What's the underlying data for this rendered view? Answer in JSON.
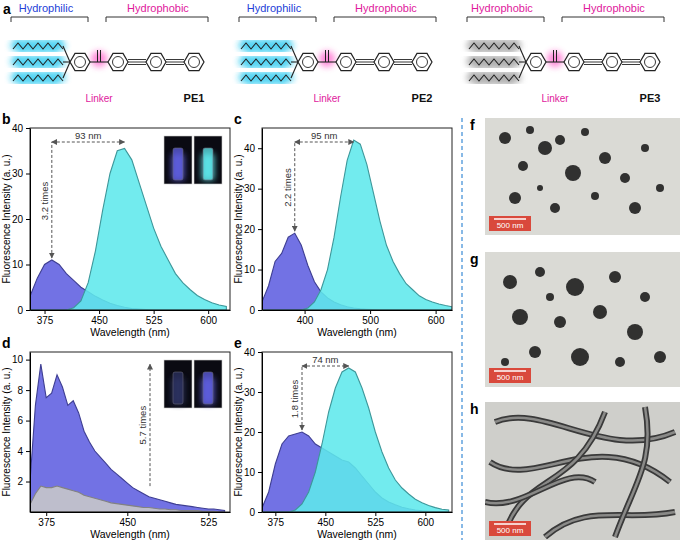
{
  "structures": {
    "panel_label": "a",
    "molecules": [
      {
        "name": "PE1",
        "head": "Hydrophilic",
        "tail": "Hydrophobic",
        "linker": "Linker"
      },
      {
        "name": "PE2",
        "head": "Hydrophilic",
        "tail": "Hydrophobic",
        "linker": "Linker"
      },
      {
        "name": "PE3",
        "head": "Hydrophobic",
        "tail": "Hydrophobic",
        "linker": "Linker"
      }
    ]
  },
  "chart_data": [
    {
      "type": "area",
      "panel_label": "b",
      "x_label": "Wavelength (nm)",
      "y_label": "Fluorescence Intensity (a. u.)",
      "shift_label": "93 nm",
      "ratio_label": "3.2 times",
      "xlim": [
        355,
        630
      ],
      "ylim": [
        0,
        40
      ],
      "xticks": [
        375,
        450,
        525,
        600
      ],
      "yticks": [
        0,
        10,
        20,
        30,
        40
      ],
      "x": [
        355,
        365,
        375,
        385,
        395,
        405,
        415,
        425,
        435,
        445,
        455,
        465,
        475,
        485,
        495,
        505,
        515,
        525,
        535,
        545,
        555,
        565,
        575,
        585,
        595,
        605,
        615,
        625
      ],
      "series": [
        {
          "color": "#5f5fe0",
          "values": [
            3,
            7,
            10,
            11,
            10,
            8,
            6.5,
            5,
            4,
            3,
            2.2,
            1.5,
            1,
            0.6,
            0.3,
            0.2,
            0.1,
            0,
            0,
            0,
            0,
            0,
            0,
            0,
            0,
            0,
            0,
            0
          ]
        },
        {
          "color": "#5ee8ec",
          "values": [
            0,
            0,
            0,
            0,
            0,
            0,
            0.5,
            2,
            6,
            13,
            22,
            30,
            35,
            35.5,
            33,
            28,
            23,
            18,
            14,
            11,
            8,
            6,
            4.5,
            3.2,
            2.3,
            1.6,
            1.1,
            0.8
          ]
        }
      ]
    },
    {
      "type": "area",
      "panel_label": "c",
      "x_label": "Wavelength (nm)",
      "y_label": "Fluorescence Intensity (a. u.)",
      "shift_label": "95 nm",
      "ratio_label": "2.2 times",
      "xlim": [
        335,
        625
      ],
      "ylim": [
        0,
        45
      ],
      "xticks": [
        400,
        500,
        600
      ],
      "yticks": [
        0,
        10,
        20,
        30,
        40
      ],
      "x": [
        335,
        345,
        355,
        365,
        375,
        385,
        395,
        405,
        415,
        425,
        435,
        445,
        455,
        465,
        475,
        485,
        495,
        505,
        515,
        525,
        535,
        545,
        555,
        565,
        575,
        585,
        595,
        605,
        615,
        625
      ],
      "series": [
        {
          "color": "#5f5fe0",
          "values": [
            2,
            6,
            12,
            14,
            18,
            19,
            16,
            11,
            7,
            4.5,
            3,
            2,
            1.3,
            0.8,
            0.5,
            0.3,
            0.2,
            0.1,
            0,
            0,
            0,
            0,
            0,
            0,
            0,
            0,
            0,
            0,
            0,
            0
          ]
        },
        {
          "color": "#5ee8ec",
          "values": [
            0,
            0,
            0,
            0,
            0,
            0,
            0,
            0.5,
            2,
            5,
            10,
            18,
            28,
            37,
            42,
            41,
            36,
            29,
            22,
            16,
            12,
            9,
            6.5,
            5,
            3.5,
            2.6,
            2,
            1.5,
            1.1,
            0.8
          ]
        }
      ]
    },
    {
      "type": "area",
      "panel_label": "d",
      "x_label": "Wavelength (nm)",
      "y_label": "Fluorescence Intensity (a. u.)",
      "ratio_label": "5.7 times",
      "xlim": [
        360,
        545
      ],
      "ylim": [
        0,
        10.5
      ],
      "xticks": [
        375,
        450,
        525
      ],
      "yticks": [
        2,
        4,
        6,
        8,
        10
      ],
      "x": [
        360,
        365,
        370,
        375,
        380,
        385,
        390,
        395,
        400,
        405,
        410,
        415,
        420,
        425,
        430,
        435,
        440,
        445,
        450,
        455,
        460,
        465,
        470,
        475,
        480,
        485,
        490,
        495,
        500,
        505,
        510,
        515,
        520,
        525,
        530,
        535,
        540
      ],
      "series": [
        {
          "color": "#5f5fe0",
          "values": [
            2,
            7,
            9.7,
            7.5,
            7.8,
            9,
            8.2,
            7,
            7.3,
            6.5,
            5.3,
            4.6,
            4,
            3.6,
            3.2,
            2.8,
            2.5,
            2.2,
            1.9,
            1.6,
            1.4,
            1.2,
            1.0,
            0.9,
            0.8,
            0.7,
            0.6,
            0.5,
            0.45,
            0.4,
            0.35,
            0.3,
            0.25,
            0.2,
            0.2,
            0.15,
            0.1
          ]
        },
        {
          "color": "#c8c8c8",
          "values": [
            0.5,
            1.2,
            1.7,
            1.6,
            1.6,
            1.7,
            1.6,
            1.5,
            1.4,
            1.3,
            1.1,
            1.0,
            0.9,
            0.8,
            0.7,
            0.6,
            0.55,
            0.5,
            0.45,
            0.4,
            0.35,
            0.3,
            0.3,
            0.25,
            0.2,
            0.2,
            0.15,
            0.15,
            0.1,
            0.1,
            0.1,
            0.1,
            0.05,
            0.05,
            0.05,
            0,
            0
          ]
        }
      ]
    },
    {
      "type": "area",
      "panel_label": "e",
      "x_label": "Wavelength (nm)",
      "y_label": "Fluorescence Intensity (a. u.)",
      "shift_label": "74 nm",
      "ratio_label": "1.8 times",
      "xlim": [
        355,
        640
      ],
      "ylim": [
        0,
        40
      ],
      "xticks": [
        375,
        450,
        525,
        600
      ],
      "yticks": [
        0,
        10,
        20,
        30,
        40
      ],
      "x": [
        355,
        365,
        375,
        385,
        395,
        405,
        415,
        425,
        435,
        445,
        455,
        465,
        475,
        485,
        495,
        505,
        515,
        525,
        535,
        545,
        555,
        565,
        575,
        585,
        595,
        605,
        615,
        625,
        635
      ],
      "series": [
        {
          "color": "#5f5fe0",
          "values": [
            1,
            5,
            12,
            17,
            19,
            19.5,
            20,
            19,
            17,
            16,
            15,
            14,
            13,
            12.5,
            11,
            9,
            7,
            5,
            3.5,
            2.5,
            1.8,
            1.2,
            0.8,
            0.5,
            0.3,
            0.2,
            0.1,
            0.05,
            0
          ]
        },
        {
          "color": "#5ee8ec",
          "values": [
            0,
            0,
            0,
            0,
            0,
            0.5,
            2,
            5,
            10,
            17,
            25,
            31,
            35,
            36,
            35,
            31,
            26,
            20,
            15,
            11,
            8,
            6,
            4.5,
            3.2,
            2.3,
            1.6,
            1.1,
            0.7,
            0.5
          ]
        }
      ]
    }
  ],
  "micrographs": [
    {
      "panel_label": "f",
      "scale_bar": "500 nm"
    },
    {
      "panel_label": "g",
      "scale_bar": "500 nm"
    },
    {
      "panel_label": "h",
      "scale_bar": "500 nm"
    }
  ]
}
